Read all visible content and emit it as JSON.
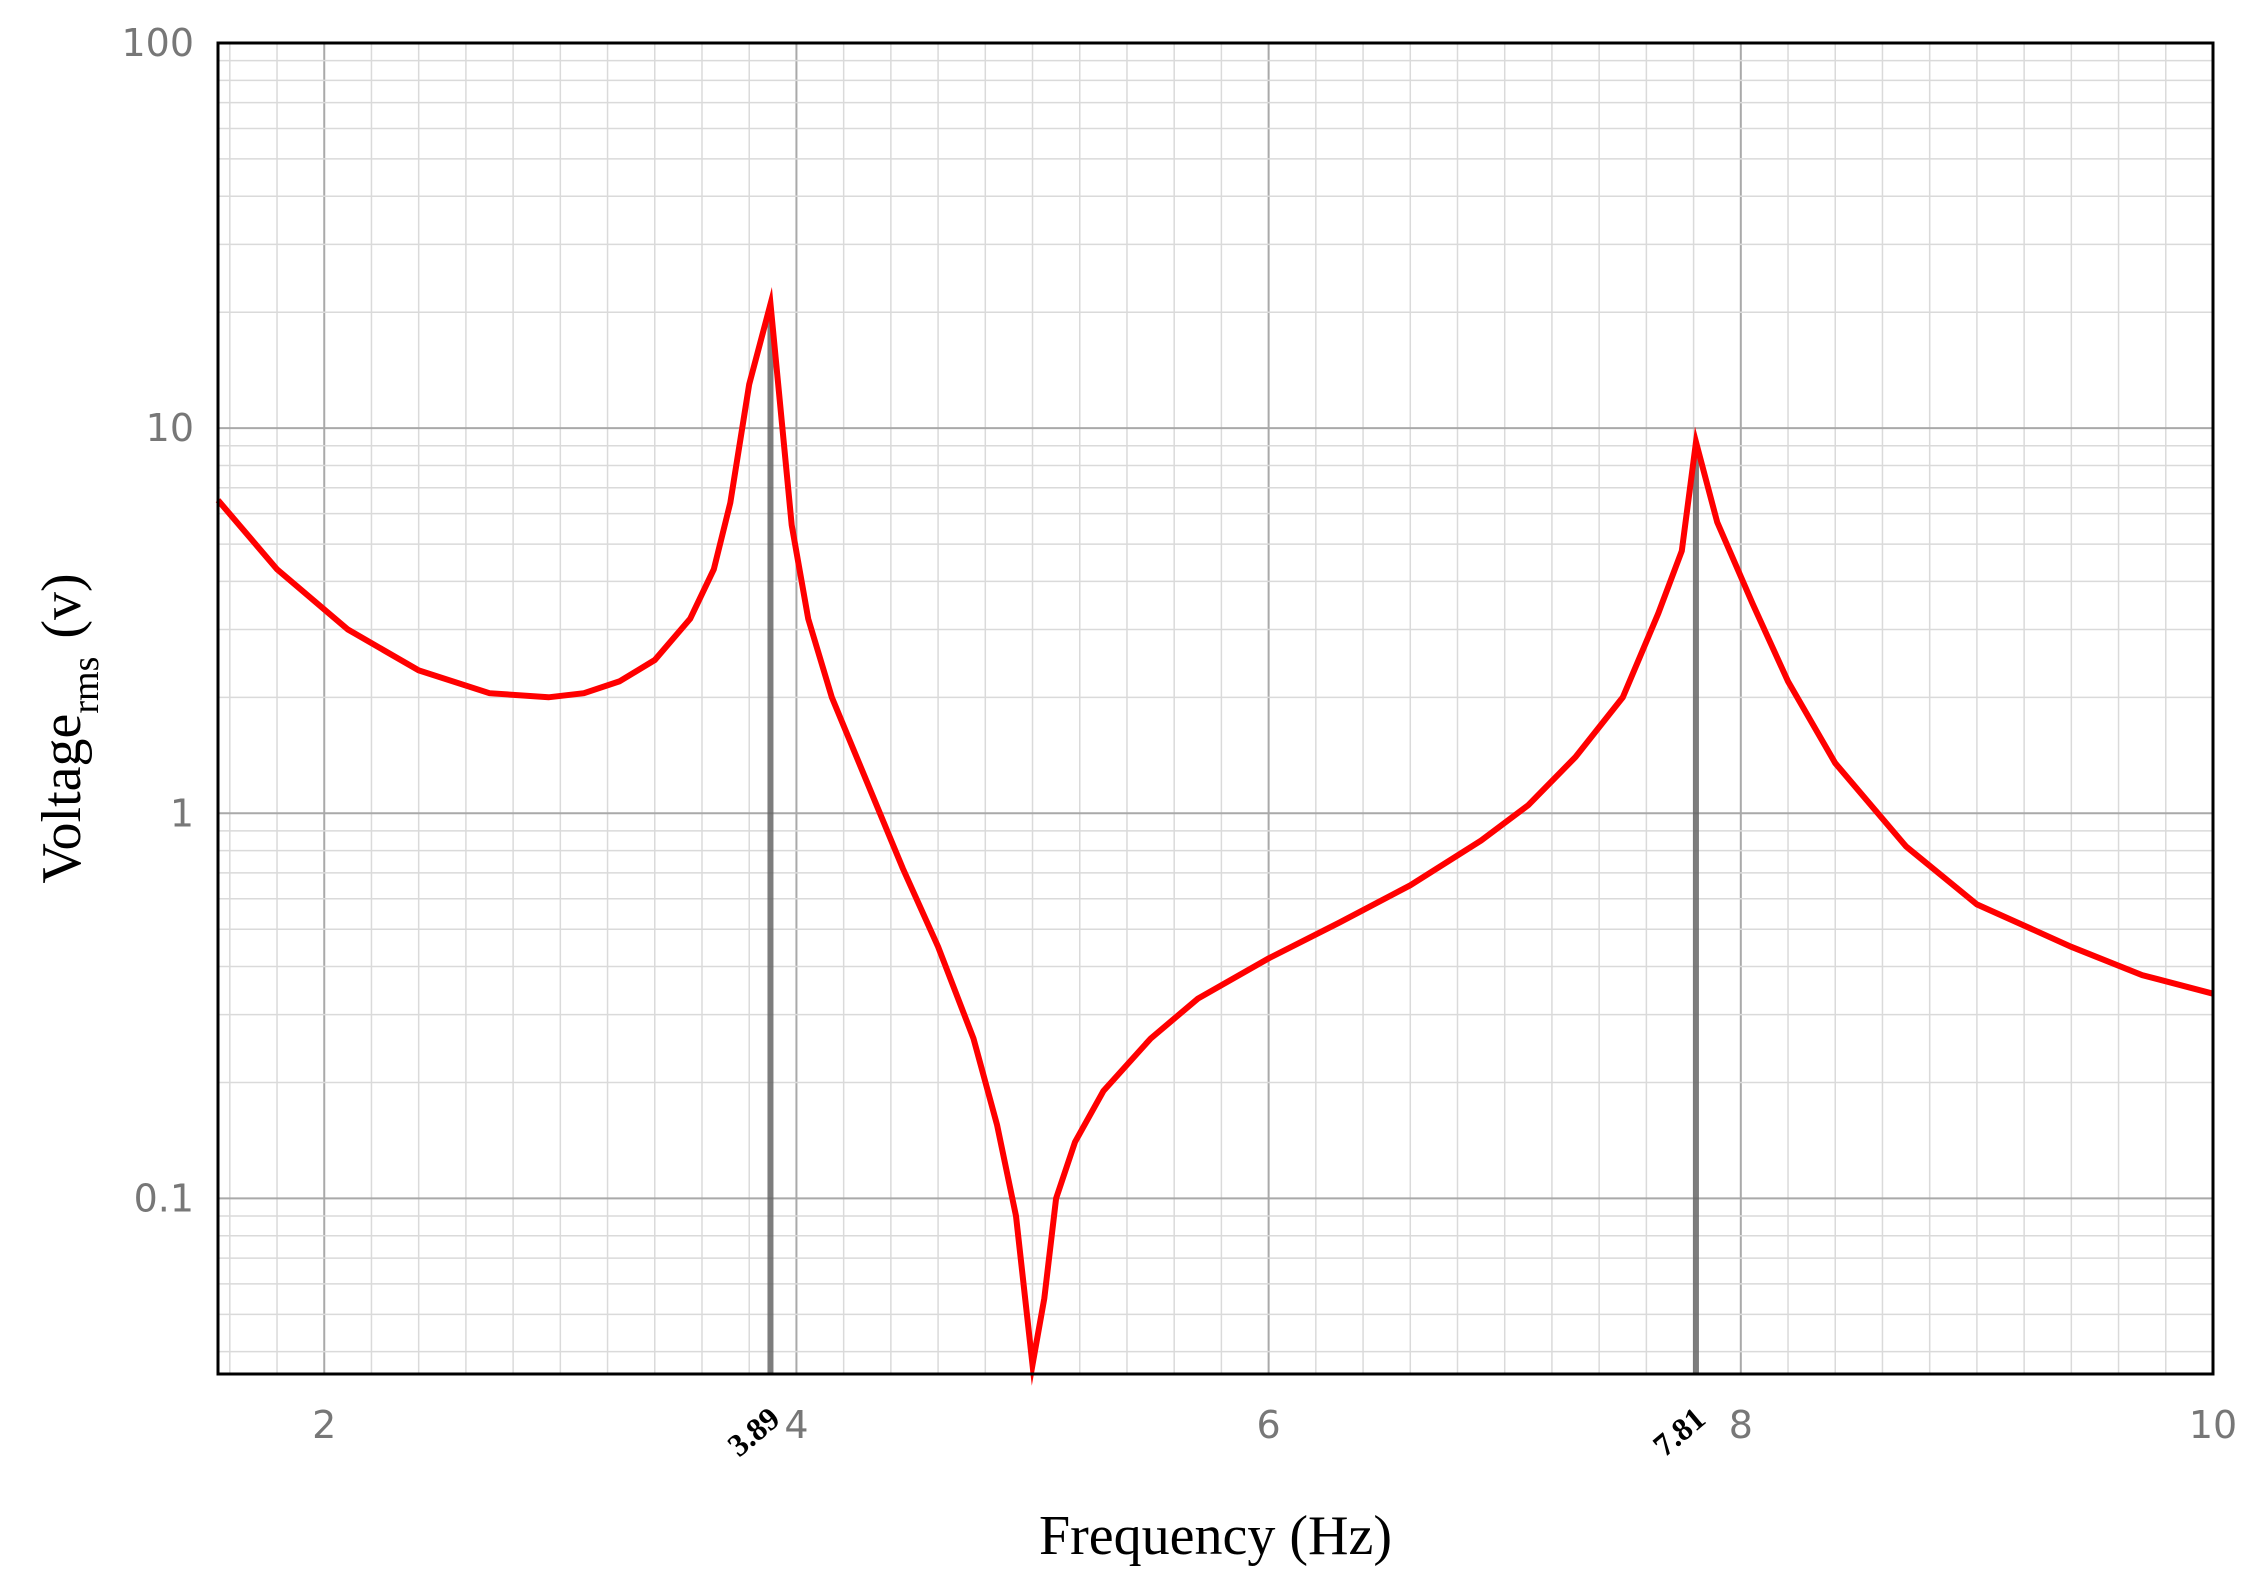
{
  "chart_data": {
    "type": "line",
    "title": "",
    "xlabel": "Frequency (Hz)",
    "ylabel": {
      "main": "Voltage",
      "subscript": "rms",
      "unit": "(v)"
    },
    "xlim": [
      1.55,
      10
    ],
    "ylim": [
      0.035,
      100
    ],
    "yscale": "log",
    "grid": true,
    "x_ticks": [
      2,
      4,
      6,
      8,
      10
    ],
    "y_ticks": [
      0.1,
      1,
      10,
      100
    ],
    "x_tick_labels": [
      "2",
      "4",
      "6",
      "8",
      "10"
    ],
    "y_tick_labels": [
      "0.1",
      "1",
      "10",
      "100"
    ],
    "line_color": "#ff0000",
    "marker_color": "#666666",
    "markers": [
      {
        "x": 3.89,
        "label": "3.89"
      },
      {
        "x": 7.81,
        "label": "7.81"
      }
    ],
    "series": [
      {
        "x": [
          1.55,
          1.8,
          2.1,
          2.4,
          2.7,
          2.95,
          3.1,
          3.25,
          3.4,
          3.55,
          3.65,
          3.72,
          3.8,
          3.89,
          3.98,
          4.05,
          4.15,
          4.3,
          4.45,
          4.6,
          4.75,
          4.85,
          4.93,
          5.0,
          5.05,
          5.1,
          5.18,
          5.3,
          5.5,
          5.7,
          6.0,
          6.3,
          6.6,
          6.9,
          7.1,
          7.3,
          7.5,
          7.65,
          7.75,
          7.81,
          7.9,
          8.05,
          8.2,
          8.4,
          8.7,
          9.0,
          9.4,
          9.7,
          10.0
        ],
        "y": [
          6.5,
          4.3,
          3.0,
          2.35,
          2.05,
          2.0,
          2.05,
          2.2,
          2.5,
          3.2,
          4.3,
          6.4,
          13.0,
          21.0,
          5.6,
          3.2,
          2.0,
          1.2,
          0.72,
          0.45,
          0.26,
          0.155,
          0.09,
          0.037,
          0.055,
          0.1,
          0.14,
          0.19,
          0.26,
          0.33,
          0.42,
          0.52,
          0.65,
          0.85,
          1.05,
          1.4,
          2.0,
          3.3,
          4.8,
          9.2,
          5.7,
          3.5,
          2.2,
          1.35,
          0.82,
          0.58,
          0.45,
          0.38,
          0.34
        ]
      }
    ]
  }
}
